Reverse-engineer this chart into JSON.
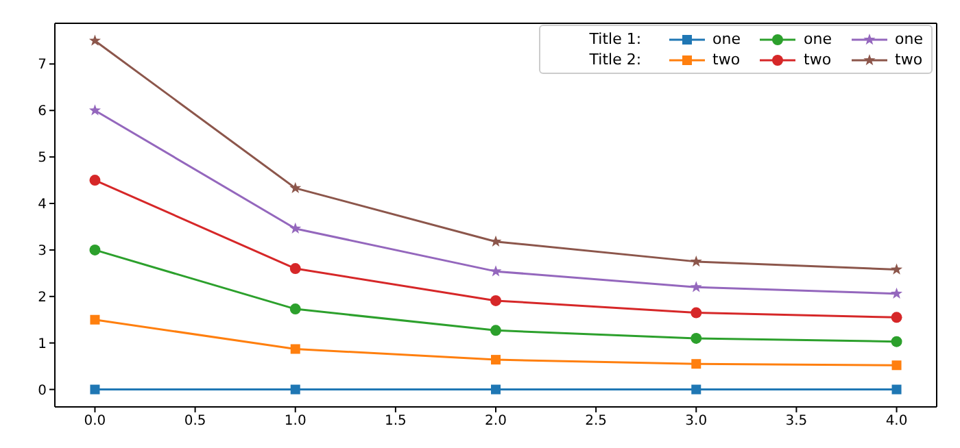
{
  "chart_data": {
    "type": "line",
    "x": [
      0,
      1,
      2,
      3,
      4
    ],
    "series": [
      {
        "name": "one",
        "color": "#1f77b4",
        "marker": "square",
        "values": [
          0,
          0,
          0,
          0,
          0
        ]
      },
      {
        "name": "two",
        "color": "#ff7f0e",
        "marker": "square",
        "values": [
          1.5,
          0.87,
          0.64,
          0.55,
          0.52
        ]
      },
      {
        "name": "one",
        "color": "#2ca02c",
        "marker": "circle",
        "values": [
          3,
          1.73,
          1.27,
          1.1,
          1.03
        ]
      },
      {
        "name": "two",
        "color": "#d62728",
        "marker": "circle",
        "values": [
          4.5,
          2.6,
          1.91,
          1.65,
          1.55
        ]
      },
      {
        "name": "one",
        "color": "#9467bd",
        "marker": "star",
        "values": [
          6,
          3.46,
          2.54,
          2.2,
          2.06
        ]
      },
      {
        "name": "two",
        "color": "#8c564b",
        "marker": "star",
        "values": [
          7.5,
          4.33,
          3.18,
          2.75,
          2.58
        ]
      }
    ],
    "annotations": [
      "Title 1:",
      "Title 2:"
    ],
    "xlim": [
      -0.2,
      4.2
    ],
    "xticks": [
      {
        "value": 0,
        "label": "0.0"
      },
      {
        "value": 0.5,
        "label": "0.5"
      },
      {
        "value": 1,
        "label": "1.0"
      },
      {
        "value": 1.5,
        "label": "1.5"
      },
      {
        "value": 2,
        "label": "2.0"
      },
      {
        "value": 2.5,
        "label": "2.5"
      },
      {
        "value": 3,
        "label": "3.0"
      },
      {
        "value": 3.5,
        "label": "3.5"
      },
      {
        "value": 4,
        "label": "4.0"
      }
    ],
    "ylim": [
      -0.375,
      7.875
    ],
    "yticks": [
      0,
      1,
      2,
      3,
      4,
      5,
      6,
      7
    ],
    "legend": "top right",
    "line_style": "solid"
  }
}
